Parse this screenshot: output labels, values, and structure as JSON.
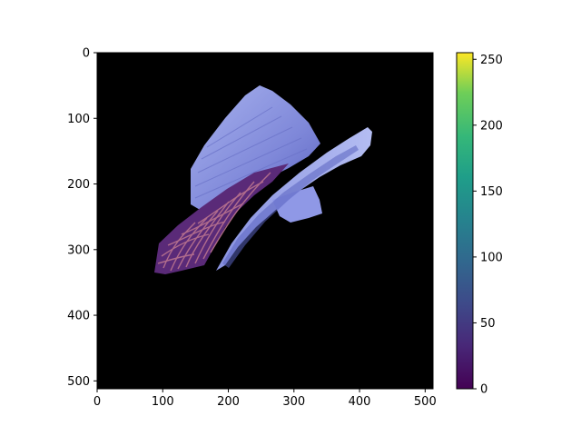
{
  "image_axes": {
    "x_ticks": [
      "0",
      "100",
      "200",
      "300",
      "400",
      "500"
    ],
    "x_tick_values": [
      0,
      100,
      200,
      300,
      400,
      500
    ],
    "y_ticks": [
      "0",
      "100",
      "200",
      "300",
      "400",
      "500"
    ],
    "y_tick_values": [
      0,
      100,
      200,
      300,
      400,
      500
    ],
    "extent": [
      0,
      512
    ]
  },
  "colorbar": {
    "colormap": "viridis",
    "range": [
      0,
      255
    ],
    "ticks": [
      "0",
      "50",
      "100",
      "150",
      "200",
      "250"
    ],
    "tick_values": [
      0,
      50,
      100,
      150,
      200,
      250
    ]
  },
  "image_content": {
    "background": "#000000",
    "subject": "hat-shaped object in purple-blue tones with reddish fibrous texture",
    "colors": {
      "hat_light": "#a8b2ee",
      "hat_mid": "#7f88d9",
      "hat_dark": "#4d55b0",
      "fiber": "#b2687f",
      "fiber_dark": "#5a2a78"
    }
  }
}
